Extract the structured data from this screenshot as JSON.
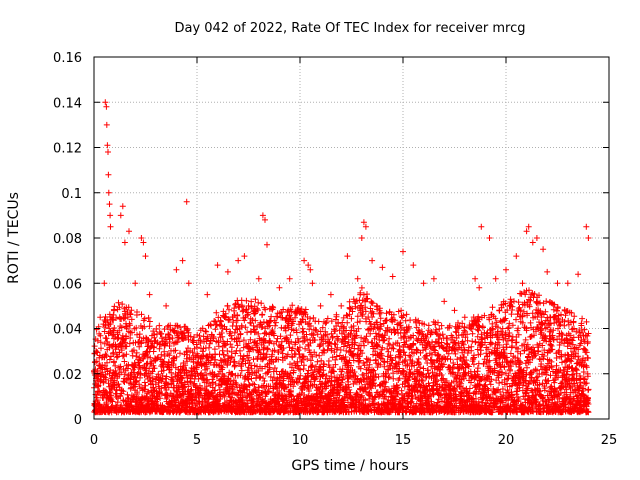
{
  "chart_data": {
    "type": "scatter",
    "title": "Day 042 of 2022, Rate Of TEC Index for receiver mrcg",
    "xlabel": "GPS time / hours",
    "ylabel": "ROTI / TECUs",
    "xlim": [
      0,
      25
    ],
    "ylim": [
      0,
      0.16
    ],
    "x_ticks": [
      0,
      5,
      10,
      15,
      20,
      25
    ],
    "y_ticks": [
      0,
      0.02,
      0.04,
      0.06,
      0.08,
      0.1,
      0.12,
      0.14,
      0.16
    ],
    "x_tick_labels": [
      "0",
      "5",
      "10",
      "15",
      "20",
      "25"
    ],
    "y_tick_labels": [
      "0",
      "0.02",
      "0.04",
      "0.06",
      "0.08",
      "0.1",
      "0.12",
      "0.14",
      "0.16"
    ],
    "grid": true,
    "marker": "plus",
    "color": "#ff0000",
    "series": [
      {
        "x": [
          0.1,
          0.3,
          0.5,
          0.55,
          0.6,
          0.62,
          0.65,
          0.68,
          0.7,
          0.72,
          0.75,
          0.78,
          0.8,
          1.3,
          1.4,
          1.5,
          1.7,
          2.0,
          2.3,
          2.4,
          2.5,
          2.7,
          3.5,
          4.0,
          4.3,
          4.5,
          4.6,
          5.5,
          6.0,
          6.5,
          7.0,
          7.3,
          7.5,
          8.0,
          8.2,
          8.3,
          8.4,
          9.0,
          9.5,
          10.2,
          10.4,
          10.5,
          10.6,
          11.0,
          11.5,
          12.0,
          12.3,
          12.8,
          13.0,
          13.1,
          13.2,
          13.5,
          14.0,
          14.5,
          15.0,
          15.5,
          16.0,
          16.5,
          17.0,
          17.5,
          18.0,
          18.5,
          18.7,
          18.8,
          19.2,
          19.5,
          20.0,
          20.5,
          20.8,
          21.0,
          21.1,
          21.3,
          21.5,
          21.8,
          22.0,
          22.5,
          23.0,
          23.5,
          23.9,
          24.0
        ],
        "y": [
          0.03,
          0.045,
          0.06,
          0.14,
          0.138,
          0.13,
          0.121,
          0.118,
          0.108,
          0.1,
          0.095,
          0.09,
          0.085,
          0.09,
          0.094,
          0.078,
          0.083,
          0.06,
          0.08,
          0.078,
          0.072,
          0.055,
          0.05,
          0.066,
          0.07,
          0.096,
          0.06,
          0.055,
          0.068,
          0.065,
          0.07,
          0.072,
          0.05,
          0.062,
          0.09,
          0.088,
          0.077,
          0.058,
          0.062,
          0.07,
          0.068,
          0.066,
          0.06,
          0.05,
          0.055,
          0.05,
          0.072,
          0.062,
          0.08,
          0.087,
          0.085,
          0.07,
          0.067,
          0.063,
          0.074,
          0.068,
          0.06,
          0.062,
          0.052,
          0.048,
          0.045,
          0.062,
          0.058,
          0.085,
          0.08,
          0.062,
          0.066,
          0.072,
          0.06,
          0.083,
          0.085,
          0.078,
          0.08,
          0.075,
          0.065,
          0.06,
          0.06,
          0.064,
          0.085,
          0.08
        ]
      }
    ],
    "noise_band": {
      "x_start": 0,
      "x_end": 24,
      "step": 0.0125,
      "envelope": [
        [
          0,
          0.035
        ],
        [
          1,
          0.05
        ],
        [
          2,
          0.045
        ],
        [
          3,
          0.04
        ],
        [
          4,
          0.04
        ],
        [
          5,
          0.035
        ],
        [
          6,
          0.045
        ],
        [
          7,
          0.05
        ],
        [
          8,
          0.05
        ],
        [
          9,
          0.045
        ],
        [
          10,
          0.05
        ],
        [
          11,
          0.04
        ],
        [
          12,
          0.045
        ],
        [
          13,
          0.055
        ],
        [
          14,
          0.045
        ],
        [
          15,
          0.045
        ],
        [
          16,
          0.04
        ],
        [
          17,
          0.04
        ],
        [
          18,
          0.04
        ],
        [
          19,
          0.045
        ],
        [
          20,
          0.05
        ],
        [
          21,
          0.055
        ],
        [
          22,
          0.05
        ],
        [
          23,
          0.045
        ],
        [
          24,
          0.04
        ]
      ]
    }
  }
}
